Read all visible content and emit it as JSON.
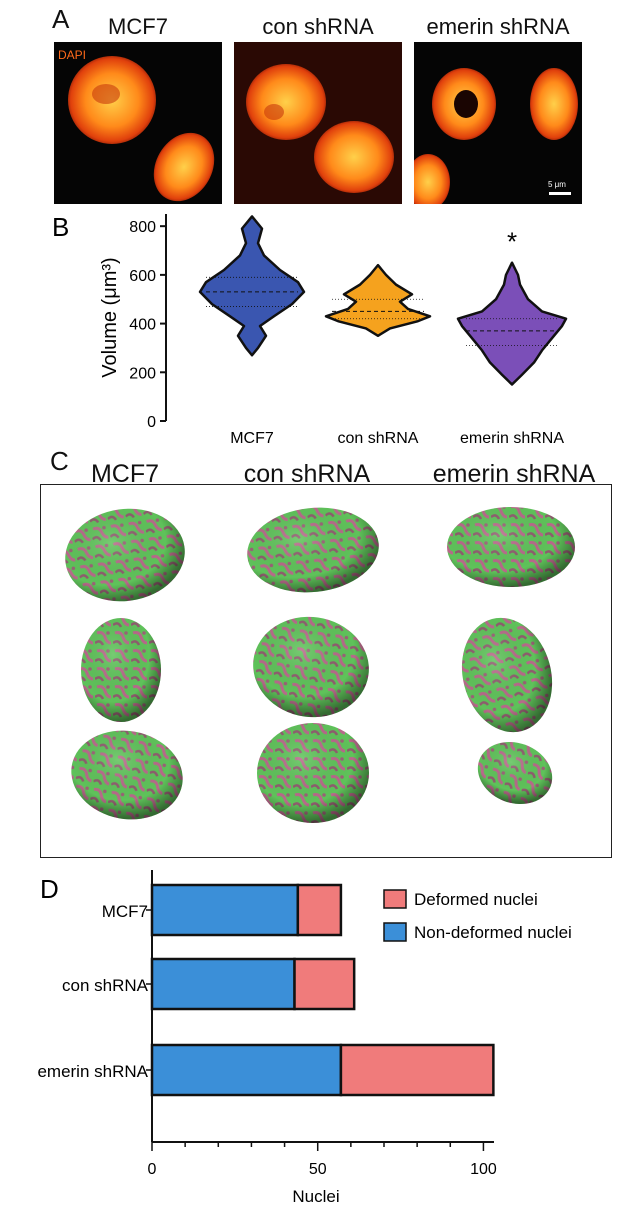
{
  "panel_a": {
    "letter": "A",
    "columns": [
      "MCF7",
      "con shRNA",
      "emerin shRNA"
    ],
    "stain_label": "DAPI",
    "scale_bar_label": "5 μm"
  },
  "panel_c": {
    "letter": "C",
    "columns": [
      "MCF7",
      "con shRNA",
      "emerin shRNA"
    ]
  },
  "chart_data": [
    {
      "panel": "B",
      "type": "violin",
      "categories": [
        "MCF7",
        "con shRNA",
        "emerin shRNA"
      ],
      "ylabel": "Volume (μm³)",
      "ylim": [
        0,
        850
      ],
      "yticks": [
        0,
        200,
        400,
        600,
        800
      ],
      "medians": [
        530,
        450,
        370
      ],
      "quartiles": [
        [
          470,
          590
        ],
        [
          420,
          500
        ],
        [
          310,
          420
        ]
      ],
      "ranges": [
        [
          270,
          840
        ],
        [
          350,
          640
        ],
        [
          150,
          650
        ]
      ],
      "significance": [
        "",
        "",
        "*"
      ],
      "colors": [
        "#3a56b0",
        "#f5a21e",
        "#7b4fb8"
      ]
    },
    {
      "panel": "D",
      "type": "bar",
      "orientation": "horizontal",
      "stacked": true,
      "categories": [
        "MCF7",
        "con shRNA",
        "emerin shRNA"
      ],
      "series": [
        {
          "name": "Non-deformed nuclei",
          "values": [
            44,
            43,
            57
          ],
          "color": "#3b8fd8"
        },
        {
          "name": "Deformed nuclei",
          "values": [
            13,
            18,
            46
          ],
          "color": "#f07b7b"
        }
      ],
      "xlabel": "Nuclei",
      "xlim": [
        0,
        105
      ],
      "xticks": [
        0,
        50,
        100
      ],
      "legend_position": "right"
    }
  ]
}
